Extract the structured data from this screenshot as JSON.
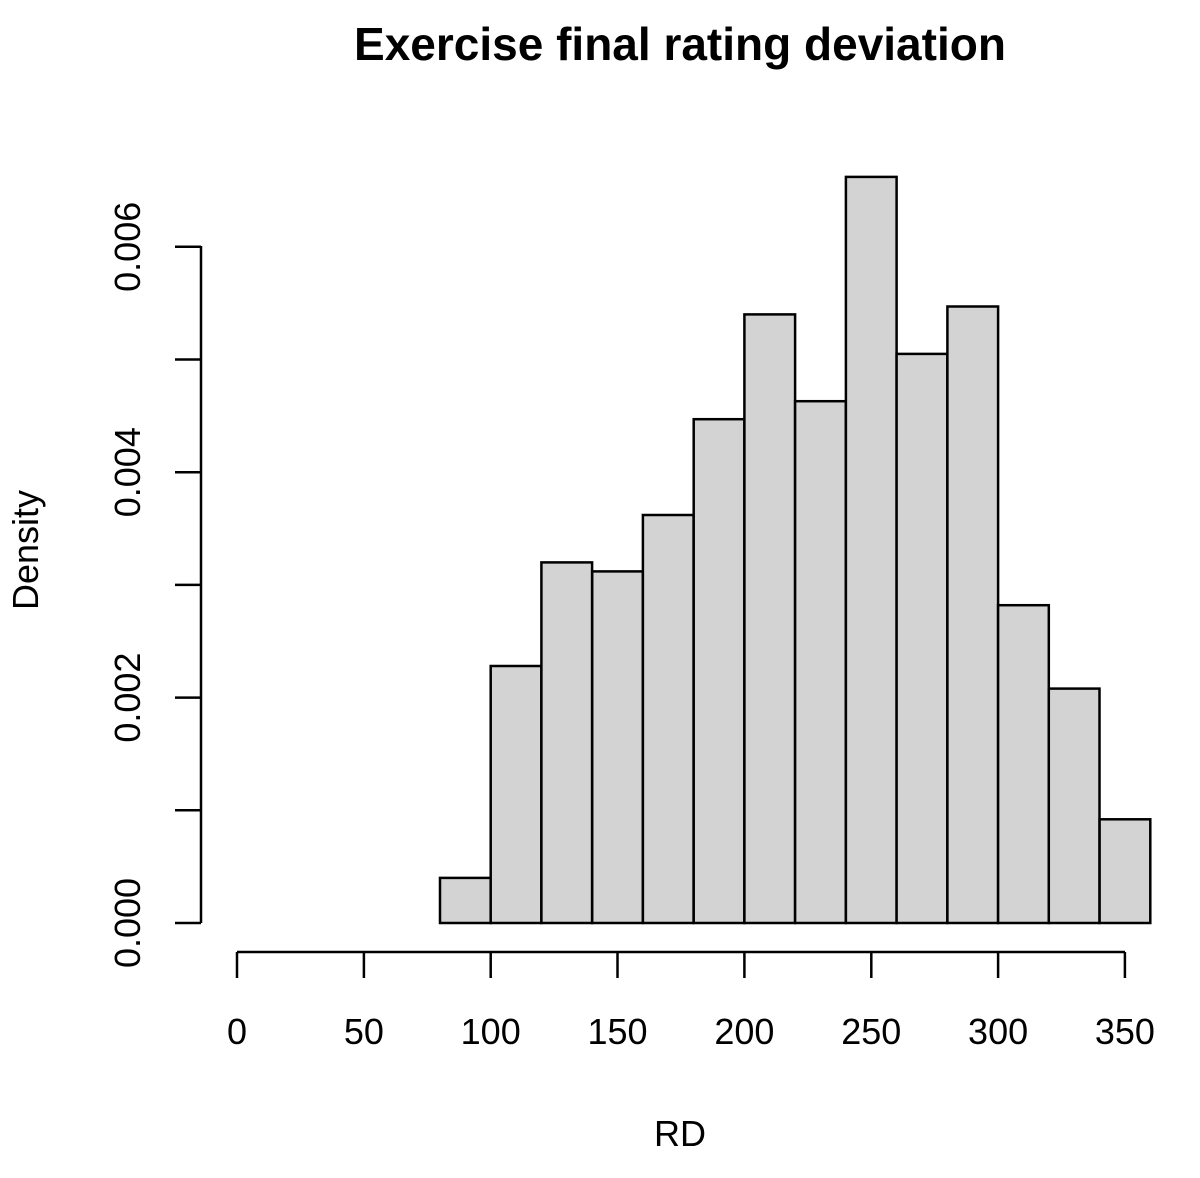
{
  "chart_data": {
    "type": "bar",
    "subtype": "histogram",
    "title": "Exercise final rating deviation",
    "xlabel": "RD",
    "ylabel": "Density",
    "xlim": [
      0,
      360
    ],
    "ylim": [
      0,
      0.0068
    ],
    "x_ticks": [
      0,
      50,
      100,
      150,
      200,
      250,
      300,
      350
    ],
    "x_tick_labels": [
      "0",
      "50",
      "100",
      "150",
      "200",
      "250",
      "300",
      "350"
    ],
    "y_ticks": [
      0,
      0.001,
      0.002,
      0.003,
      0.004,
      0.005,
      0.006
    ],
    "y_tick_labels": [
      "0.000",
      "",
      "0.002",
      "",
      "0.004",
      "",
      "0.006"
    ],
    "bin_edges": [
      80,
      100,
      120,
      140,
      160,
      180,
      200,
      220,
      240,
      260,
      280,
      300,
      320,
      340,
      360
    ],
    "values": [
      0.0004,
      0.00228,
      0.0032,
      0.00312,
      0.00362,
      0.00447,
      0.0054,
      0.00463,
      0.00662,
      0.00505,
      0.00547,
      0.00282,
      0.00208,
      0.00092
    ],
    "bar_fill": "#d3d3d3",
    "bar_stroke": "#000000",
    "grid": false,
    "legend": "none"
  }
}
